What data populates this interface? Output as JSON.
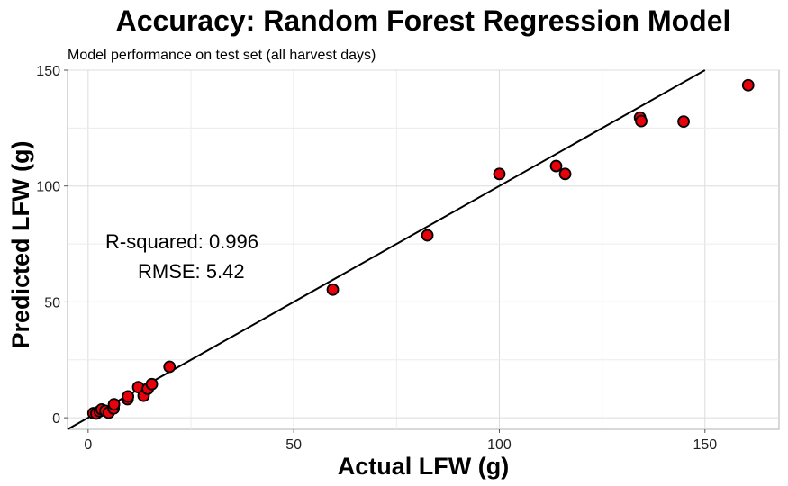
{
  "chart_data": {
    "type": "scatter",
    "title": "Accuracy: Random Forest Regression Model",
    "subtitle": "Model performance on test set (all harvest days)",
    "xlabel": "Actual LFW (g)",
    "ylabel": "Predicted LFW (g)",
    "xlim": [
      -5,
      168
    ],
    "ylim": [
      -5,
      150
    ],
    "xticks": [
      0,
      50,
      100,
      150
    ],
    "yticks": [
      0,
      50,
      100,
      150
    ],
    "grid": true,
    "reference_line": {
      "type": "identity",
      "slope": 1,
      "intercept": 0
    },
    "annotations": {
      "r_squared": "R-squared:  0.996",
      "rmse": "RMSE:  5.42"
    },
    "point_color": "#e8000b",
    "point_edge_color": "#000000",
    "points": [
      {
        "x": 1.3,
        "y": 2.0
      },
      {
        "x": 2.0,
        "y": 1.8
      },
      {
        "x": 2.8,
        "y": 2.8
      },
      {
        "x": 3.3,
        "y": 3.6
      },
      {
        "x": 4.2,
        "y": 3.0
      },
      {
        "x": 5.0,
        "y": 2.2
      },
      {
        "x": 6.2,
        "y": 4.0
      },
      {
        "x": 6.3,
        "y": 5.8
      },
      {
        "x": 9.6,
        "y": 8.0
      },
      {
        "x": 9.7,
        "y": 9.2
      },
      {
        "x": 12.2,
        "y": 13.2
      },
      {
        "x": 13.5,
        "y": 9.5
      },
      {
        "x": 14.5,
        "y": 12.5
      },
      {
        "x": 15.5,
        "y": 14.5
      },
      {
        "x": 19.8,
        "y": 22.0
      },
      {
        "x": 59.5,
        "y": 55.3
      },
      {
        "x": 82.5,
        "y": 78.7
      },
      {
        "x": 100.0,
        "y": 105.2
      },
      {
        "x": 113.8,
        "y": 108.6
      },
      {
        "x": 116.0,
        "y": 105.2
      },
      {
        "x": 134.2,
        "y": 129.5
      },
      {
        "x": 134.5,
        "y": 128.0
      },
      {
        "x": 144.8,
        "y": 127.8
      },
      {
        "x": 160.5,
        "y": 143.5
      }
    ]
  }
}
